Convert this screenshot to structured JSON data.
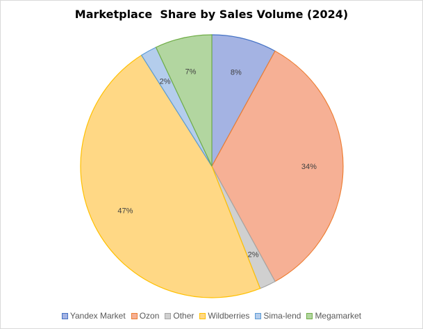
{
  "chart_data": {
    "type": "pie",
    "title": "Marketplace  Share by Sales Volume (2024)",
    "start_angle_deg": 0,
    "direction": "clockwise",
    "legend_position": "bottom",
    "slices": [
      {
        "name": "Yandex Market",
        "value": 8,
        "label": "8%",
        "fill": "#a4b3e3",
        "stroke": "#4472c4"
      },
      {
        "name": "Ozon",
        "value": 34,
        "label": "34%",
        "fill": "#f6b095",
        "stroke": "#ed7d31"
      },
      {
        "name": "Other",
        "value": 2,
        "label": "2%",
        "fill": "#d0d0d0",
        "stroke": "#a5a5a5"
      },
      {
        "name": "Wildberries",
        "value": 47,
        "label": "47%",
        "fill": "#ffd885",
        "stroke": "#ffc000"
      },
      {
        "name": "Sima-lend",
        "value": 2,
        "label": "2%",
        "fill": "#b4cdec",
        "stroke": "#5b9bd5"
      },
      {
        "name": "Megamarket",
        "value": 7,
        "label": "7%",
        "fill": "#b2d6a0",
        "stroke": "#70ad47"
      }
    ]
  }
}
